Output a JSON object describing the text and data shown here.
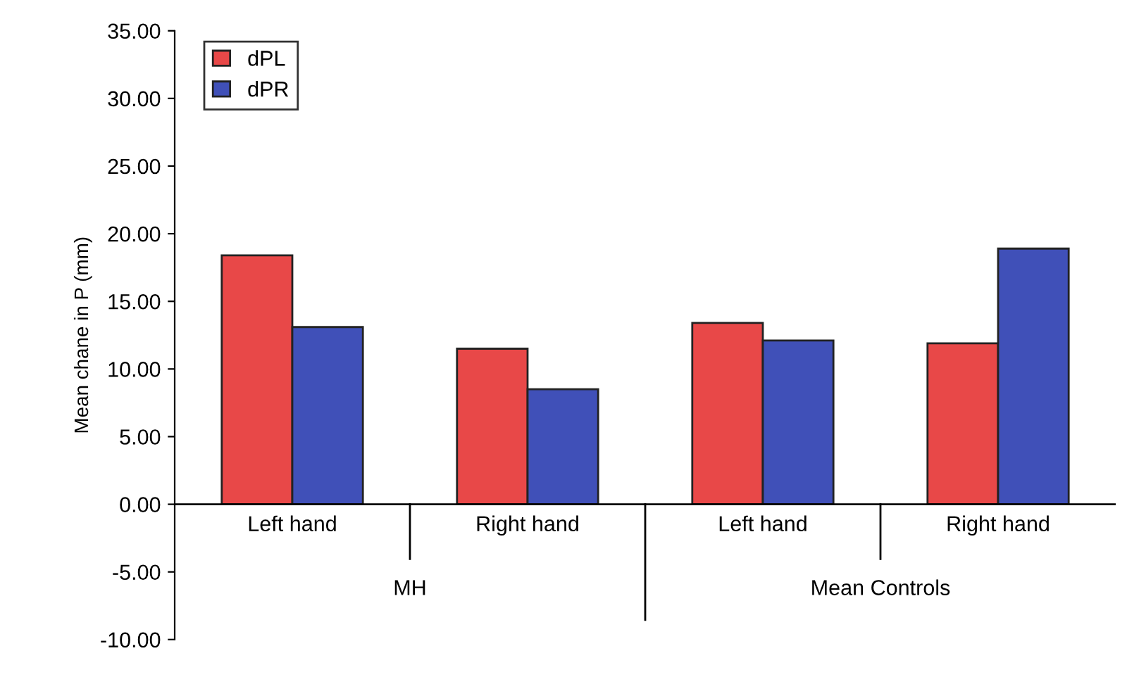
{
  "chart_data": {
    "type": "bar",
    "ylabel": "Mean chane in P (mm)",
    "categories": [
      "Left hand",
      "Right hand",
      "Left hand",
      "Right hand"
    ],
    "series": [
      {
        "name": "dPL",
        "color": "#e84848",
        "values": [
          18.4,
          11.5,
          13.4,
          11.9
        ]
      },
      {
        "name": "dPR",
        "color": "#4050b8",
        "values": [
          13.1,
          8.5,
          12.1,
          18.9
        ]
      }
    ],
    "annotations": [
      "MH",
      "Mean Controls"
    ],
    "ylim": [
      -10,
      35
    ],
    "yticks": [
      {
        "value": -10,
        "label": "-10.00"
      },
      {
        "value": -5,
        "label": "-5.00"
      },
      {
        "value": 0,
        "label": "0.00"
      },
      {
        "value": 5,
        "label": "5.00"
      },
      {
        "value": 10,
        "label": "10.00"
      },
      {
        "value": 15,
        "label": "15.00"
      },
      {
        "value": 20,
        "label": "20.00"
      },
      {
        "value": 25,
        "label": "25.00"
      },
      {
        "value": 30,
        "label": "30.00"
      },
      {
        "value": 35,
        "label": "35.00"
      }
    ],
    "legend": "top left",
    "grid": false
  }
}
